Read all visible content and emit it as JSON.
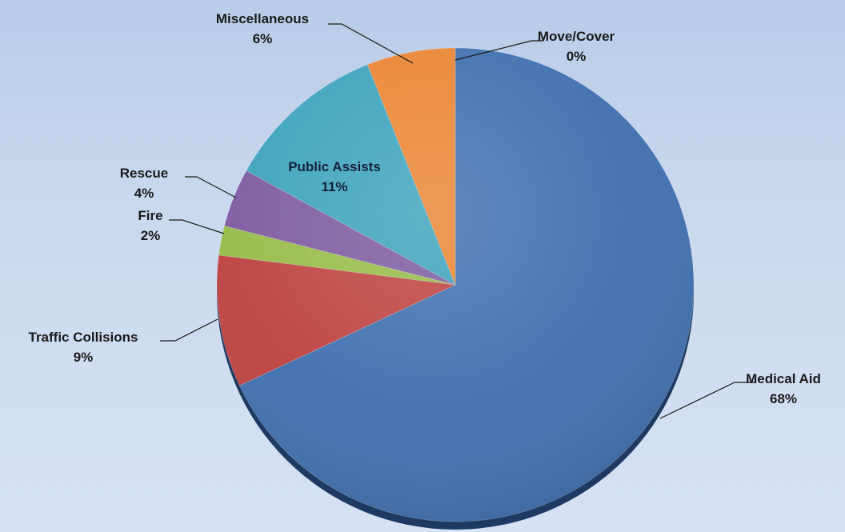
{
  "chart_data": {
    "type": "pie",
    "title": "",
    "slices": [
      {
        "category": "Medical Aid",
        "value": 68,
        "label": "68%",
        "color": "#3e6faf"
      },
      {
        "category": "Traffic Collisions",
        "value": 9,
        "label": "9%",
        "color": "#bd4240"
      },
      {
        "category": "Fire",
        "value": 2,
        "label": "2%",
        "color": "#97bb47"
      },
      {
        "category": "Rescue",
        "value": 4,
        "label": "4%",
        "color": "#7c5aa0"
      },
      {
        "category": "Public Assists",
        "value": 11,
        "label": "11%",
        "color": "#3ca2bd"
      },
      {
        "category": "Miscellaneous",
        "value": 6,
        "label": "6%",
        "color": "#ea8532"
      },
      {
        "category": "Move/Cover",
        "value": 0,
        "label": "0%",
        "color": "#9fb6d6"
      }
    ],
    "legend": "none",
    "data_labels": "category and percent"
  }
}
